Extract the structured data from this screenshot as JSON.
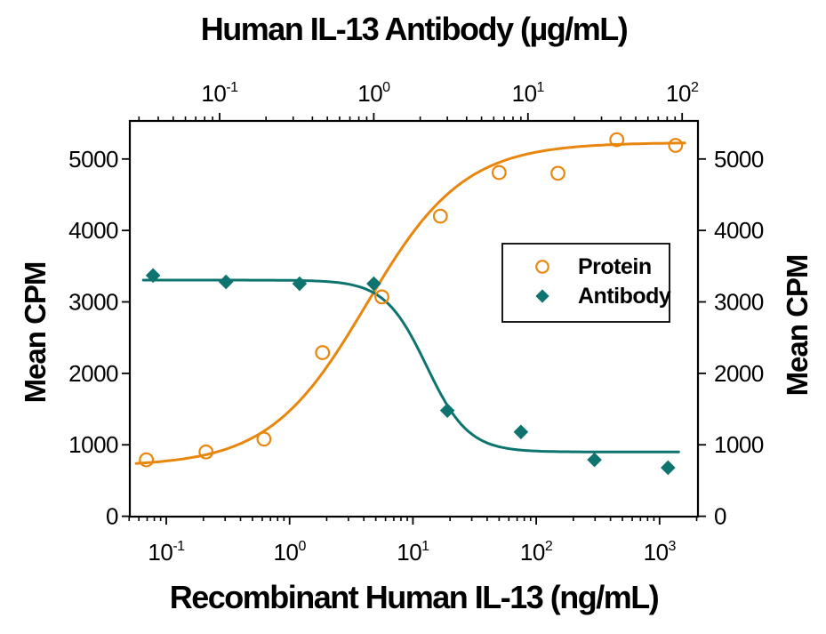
{
  "chart_data": {
    "type": "scatter",
    "description": "Dose-response / neutralization bioassay curves",
    "top_axis": {
      "title": "Human IL-13 Antibody (µg/mL)",
      "scale": "log",
      "tick_exponents": [
        -1,
        0,
        1,
        2
      ],
      "range": [
        0.026,
        127
      ]
    },
    "bottom_axis": {
      "title": "Recombinant Human IL-13 (ng/mL)",
      "scale": "log",
      "tick_exponents": [
        -1,
        0,
        1,
        2,
        3
      ],
      "range": [
        0.05,
        2050
      ]
    },
    "y_axis": {
      "label_left": "Mean CPM",
      "label_right": "Mean CPM",
      "ticks": [
        0,
        1000,
        2000,
        3000,
        4000,
        5000
      ],
      "range": [
        0,
        5550
      ]
    },
    "series": [
      {
        "name": "Protein",
        "axis": "bottom",
        "marker": "circle-open",
        "color": "#E8860D",
        "x": [
          0.069,
          0.21,
          0.62,
          1.85,
          5.6,
          16.7,
          50,
          150,
          450,
          1350
        ],
        "y": [
          790,
          900,
          1080,
          2290,
          3070,
          4200,
          4810,
          4800,
          5270,
          5190
        ],
        "fit": {
          "model": "4PL",
          "bottom": 700,
          "top": 5230,
          "ec50": 4.2,
          "hill": 1.1,
          "x_range": [
            0.057,
            1600
          ]
        }
      },
      {
        "name": "Antibody",
        "axis": "top",
        "marker": "diamond-filled",
        "color": "#0E746F",
        "x": [
          0.037,
          0.11,
          0.33,
          1,
          3,
          9,
          27,
          81
        ],
        "y": [
          3370,
          3280,
          3255,
          3255,
          1480,
          1180,
          790,
          680
        ],
        "fit": {
          "model": "4PL",
          "bottom": 900,
          "top": 3305,
          "ec50": 2.2,
          "hill": -3.2,
          "x_range": [
            0.032,
            95
          ]
        }
      }
    ],
    "legend": {
      "items": [
        {
          "label": "Protein",
          "marker": "circle-open",
          "color": "#E8860D"
        },
        {
          "label": "Antibody",
          "marker": "diamond-filled",
          "color": "#0E746F"
        }
      ]
    },
    "colors": {
      "axis": "#000000",
      "text": "#000000",
      "background": "#FFFFFF"
    }
  }
}
